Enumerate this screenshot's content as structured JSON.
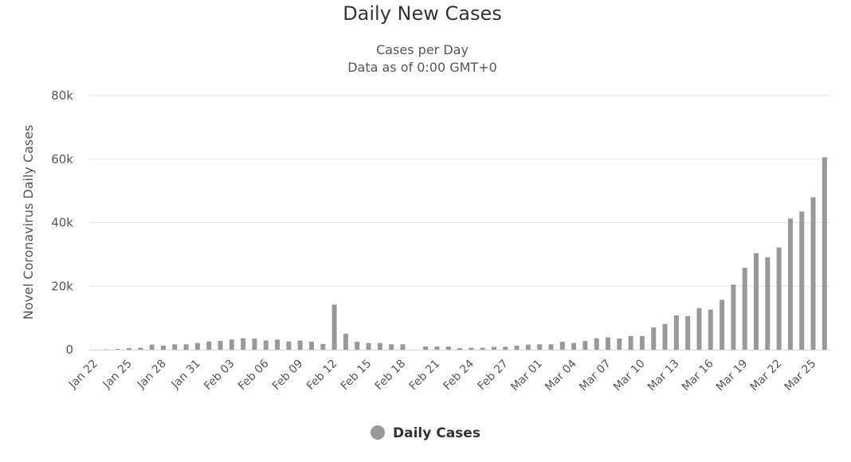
{
  "chart_data": {
    "type": "bar",
    "title": "Daily New Cases",
    "subtitle_lines": [
      "Cases per Day",
      "Data as of 0:00 GMT+0"
    ],
    "ylabel": "Novel Coronavirus Daily Cases",
    "xlabel": "",
    "ylim": [
      0,
      80000
    ],
    "yticks": [
      0,
      20000,
      40000,
      60000,
      80000
    ],
    "ytick_labels": [
      "0",
      "20k",
      "40k",
      "60k",
      "80k"
    ],
    "grid": true,
    "legend_position": "bottom-center",
    "tick_every": 3,
    "series": [
      {
        "name": "Daily Cases",
        "color": "#999999",
        "values": [
          0,
          100,
          200,
          500,
          600,
          1600,
          1300,
          1700,
          1700,
          2100,
          2600,
          2800,
          3200,
          3600,
          3500,
          2900,
          3200,
          2600,
          2900,
          2500,
          1800,
          14200,
          5000,
          2500,
          2100,
          2100,
          1700,
          1700,
          0,
          1000,
          1000,
          1000,
          500,
          600,
          600,
          900,
          900,
          1300,
          1600,
          1700,
          1700,
          2500,
          2100,
          2700,
          3600,
          3900,
          3500,
          4300,
          4300,
          7000,
          8100,
          10800,
          10600,
          13100,
          12600,
          15700,
          20500,
          25800,
          30400,
          29100,
          32200,
          41300,
          43500,
          48000,
          60600
        ]
      }
    ],
    "categories": [
      "Jan 22",
      "Jan 23",
      "Jan 24",
      "Jan 25",
      "Jan 26",
      "Jan 27",
      "Jan 28",
      "Jan 29",
      "Jan 30",
      "Jan 31",
      "Feb 01",
      "Feb 02",
      "Feb 03",
      "Feb 04",
      "Feb 05",
      "Feb 06",
      "Feb 07",
      "Feb 08",
      "Feb 09",
      "Feb 10",
      "Feb 11",
      "Feb 12",
      "Feb 13",
      "Feb 14",
      "Feb 15",
      "Feb 16",
      "Feb 17",
      "Feb 18",
      "Feb 19",
      "Feb 20",
      "Feb 21",
      "Feb 22",
      "Feb 23",
      "Feb 24",
      "Feb 25",
      "Feb 26",
      "Feb 27",
      "Feb 28",
      "Feb 29",
      "Mar 01",
      "Mar 02",
      "Mar 03",
      "Mar 04",
      "Mar 05",
      "Mar 06",
      "Mar 07",
      "Mar 08",
      "Mar 09",
      "Mar 10",
      "Mar 11",
      "Mar 12",
      "Mar 13",
      "Mar 14",
      "Mar 15",
      "Mar 16",
      "Mar 17",
      "Mar 18",
      "Mar 19",
      "Mar 20",
      "Mar 21",
      "Mar 22",
      "Mar 23",
      "Mar 24",
      "Mar 25",
      "Mar 26"
    ]
  },
  "colors": {
    "bar": "#999999",
    "grid": "#e6e6e6",
    "axis": "#ccd6eb"
  }
}
